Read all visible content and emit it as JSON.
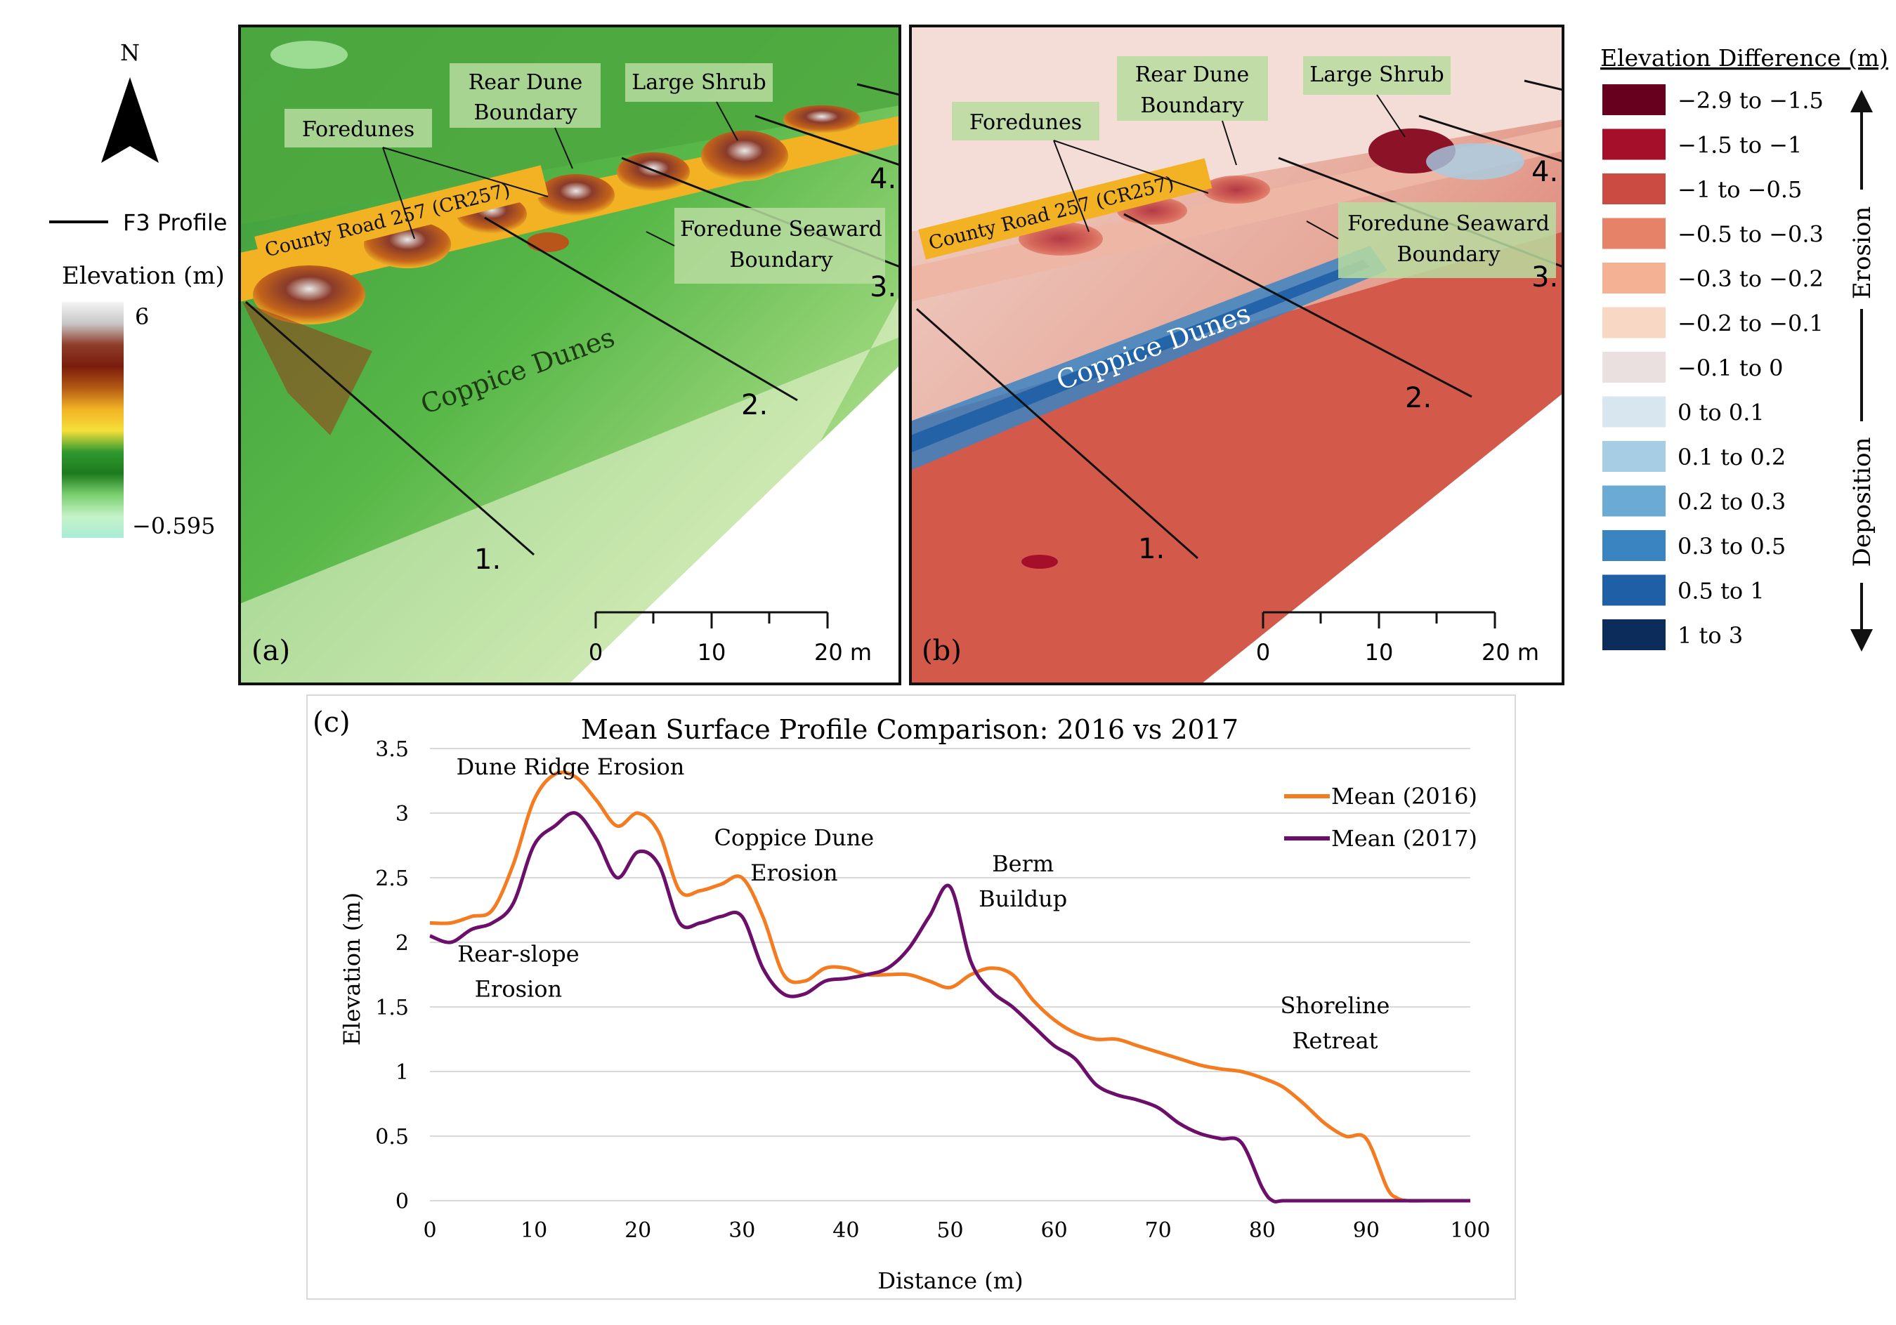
{
  "figure": {
    "north_label": "N",
    "f3_profile_label": "F3 Profile",
    "elevation_title": "Elevation (m)",
    "elevation_max": "6",
    "elevation_min": "−0.595",
    "elevation_ramp": [
      "#f4f4f4",
      "#c8c8c8",
      "#8f3d2a",
      "#7a1c0c",
      "#b35a14",
      "#f2b224",
      "#f6df3a",
      "#2f9a2f",
      "#1d7a1d",
      "#7bd070",
      "#c5f2c8",
      "#a9ecd8"
    ],
    "panel_a": {
      "label": "(a)",
      "annotations": {
        "foredunes": "Foredunes",
        "rear_dune_1": "Rear Dune",
        "rear_dune_2": "Boundary",
        "large_shrub": "Large Shrub",
        "seaward_1": "Foredune Seaward",
        "seaward_2": "Boundary",
        "road": "County Road 257 (CR257)",
        "coppice": "Coppice Dunes"
      },
      "profiles": [
        "1.",
        "2.",
        "3.",
        "4."
      ]
    },
    "panel_b": {
      "label": "(b)",
      "annotations": {
        "foredunes": "Foredunes",
        "rear_dune_1": "Rear Dune",
        "rear_dune_2": "Boundary",
        "large_shrub": "Large Shrub",
        "seaward_1": "Foredune Seaward",
        "seaward_2": "Boundary",
        "road": "County Road 257 (CR257)",
        "coppice": "Coppice Dunes"
      },
      "profiles": [
        "1.",
        "2.",
        "3.",
        "4."
      ]
    },
    "scale_bar": {
      "ticks": [
        "0",
        "10",
        "20 m"
      ]
    },
    "difference_legend": {
      "title": "Elevation Difference (m)",
      "erosion": "Erosion",
      "deposition": "Deposition",
      "classes": [
        {
          "label": "−2.9 to −1.5",
          "color": "#67001f"
        },
        {
          "label": "−1.5 to −1",
          "color": "#a50f2a"
        },
        {
          "label": "−1 to −0.5",
          "color": "#cb4a42"
        },
        {
          "label": "−0.5 to −0.3",
          "color": "#e58268"
        },
        {
          "label": "−0.3 to −0.2",
          "color": "#f5b193"
        },
        {
          "label": "−0.2 to −0.1",
          "color": "#f8d7c5"
        },
        {
          "label": "−0.1 to 0",
          "color": "#e9e0df"
        },
        {
          "label": "0 to 0.1",
          "color": "#d8e6f0"
        },
        {
          "label": "0.1 to 0.2",
          "color": "#a6cde3"
        },
        {
          "label": "0.2 to 0.3",
          "color": "#6aaad5"
        },
        {
          "label": "0.3 to 0.5",
          "color": "#3b84c2"
        },
        {
          "label": "0.5 to 1",
          "color": "#1f5fa6"
        },
        {
          "label": "1 to 3",
          "color": "#0c2c5c"
        }
      ]
    }
  },
  "chart_data": {
    "panel_label": "(c)",
    "type": "line",
    "title": "Mean Surface Profile Comparison: 2016 vs 2017",
    "xlabel": "Distance (m)",
    "ylabel": "Elevation (m)",
    "xlim": [
      0,
      100
    ],
    "ylim": [
      0,
      3.5
    ],
    "xticks": [
      0,
      10,
      20,
      30,
      40,
      50,
      60,
      70,
      80,
      90,
      100
    ],
    "yticks": [
      0,
      0.5,
      1,
      1.5,
      2,
      2.5,
      3,
      3.5
    ],
    "grid": true,
    "legend_position": "top-right",
    "series": [
      {
        "name": "Mean (2016)",
        "color": "#f47b20",
        "x": [
          0,
          2,
          4,
          6,
          8,
          10,
          12,
          14,
          16,
          18,
          20,
          22,
          24,
          26,
          28,
          30,
          32,
          34,
          36,
          38,
          40,
          42,
          44,
          46,
          48,
          50,
          52,
          54,
          56,
          58,
          60,
          62,
          64,
          66,
          68,
          70,
          72,
          74,
          76,
          78,
          80,
          82,
          84,
          86,
          88,
          90,
          92,
          93,
          94,
          96,
          98,
          100
        ],
        "y": [
          2.15,
          2.15,
          2.2,
          2.25,
          2.6,
          3.1,
          3.3,
          3.28,
          3.1,
          2.9,
          3.0,
          2.85,
          2.4,
          2.4,
          2.45,
          2.5,
          2.2,
          1.75,
          1.7,
          1.8,
          1.8,
          1.75,
          1.75,
          1.75,
          1.7,
          1.65,
          1.75,
          1.8,
          1.75,
          1.55,
          1.4,
          1.3,
          1.25,
          1.25,
          1.2,
          1.15,
          1.1,
          1.05,
          1.02,
          1.0,
          0.95,
          0.88,
          0.75,
          0.6,
          0.5,
          0.48,
          0.1,
          0.02,
          0,
          0,
          0,
          0
        ]
      },
      {
        "name": "Mean (2017)",
        "color": "#6b0f6b",
        "x": [
          0,
          2,
          4,
          6,
          8,
          10,
          12,
          14,
          16,
          18,
          20,
          22,
          24,
          26,
          28,
          30,
          32,
          34,
          36,
          38,
          40,
          42,
          44,
          46,
          48,
          50,
          52,
          54,
          56,
          58,
          60,
          62,
          64,
          66,
          68,
          70,
          72,
          74,
          76,
          78,
          80,
          81,
          82,
          84,
          86,
          88,
          90,
          92,
          94,
          96,
          98,
          100
        ],
        "y": [
          2.05,
          2.0,
          2.1,
          2.15,
          2.3,
          2.75,
          2.9,
          3.0,
          2.8,
          2.5,
          2.7,
          2.6,
          2.15,
          2.15,
          2.2,
          2.2,
          1.8,
          1.6,
          1.6,
          1.7,
          1.72,
          1.75,
          1.8,
          1.95,
          2.2,
          2.43,
          1.85,
          1.62,
          1.5,
          1.35,
          1.2,
          1.1,
          0.9,
          0.82,
          0.78,
          0.72,
          0.6,
          0.52,
          0.48,
          0.45,
          0.1,
          0.0,
          0,
          0,
          0,
          0,
          0,
          0,
          0,
          0,
          0,
          0
        ]
      }
    ],
    "annotations": [
      {
        "text": [
          "Dune Ridge Erosion"
        ],
        "x": 13.5,
        "y": 3.3
      },
      {
        "text": [
          "Coppice Dune",
          "Erosion"
        ],
        "x": 35,
        "y": 2.75
      },
      {
        "text": [
          "Berm",
          "Buildup"
        ],
        "x": 57,
        "y": 2.55
      },
      {
        "text": [
          "Rear-slope",
          "Erosion"
        ],
        "x": 8.5,
        "y": 1.85
      },
      {
        "text": [
          "Shoreline",
          "Retreat"
        ],
        "x": 87,
        "y": 1.45
      }
    ]
  }
}
